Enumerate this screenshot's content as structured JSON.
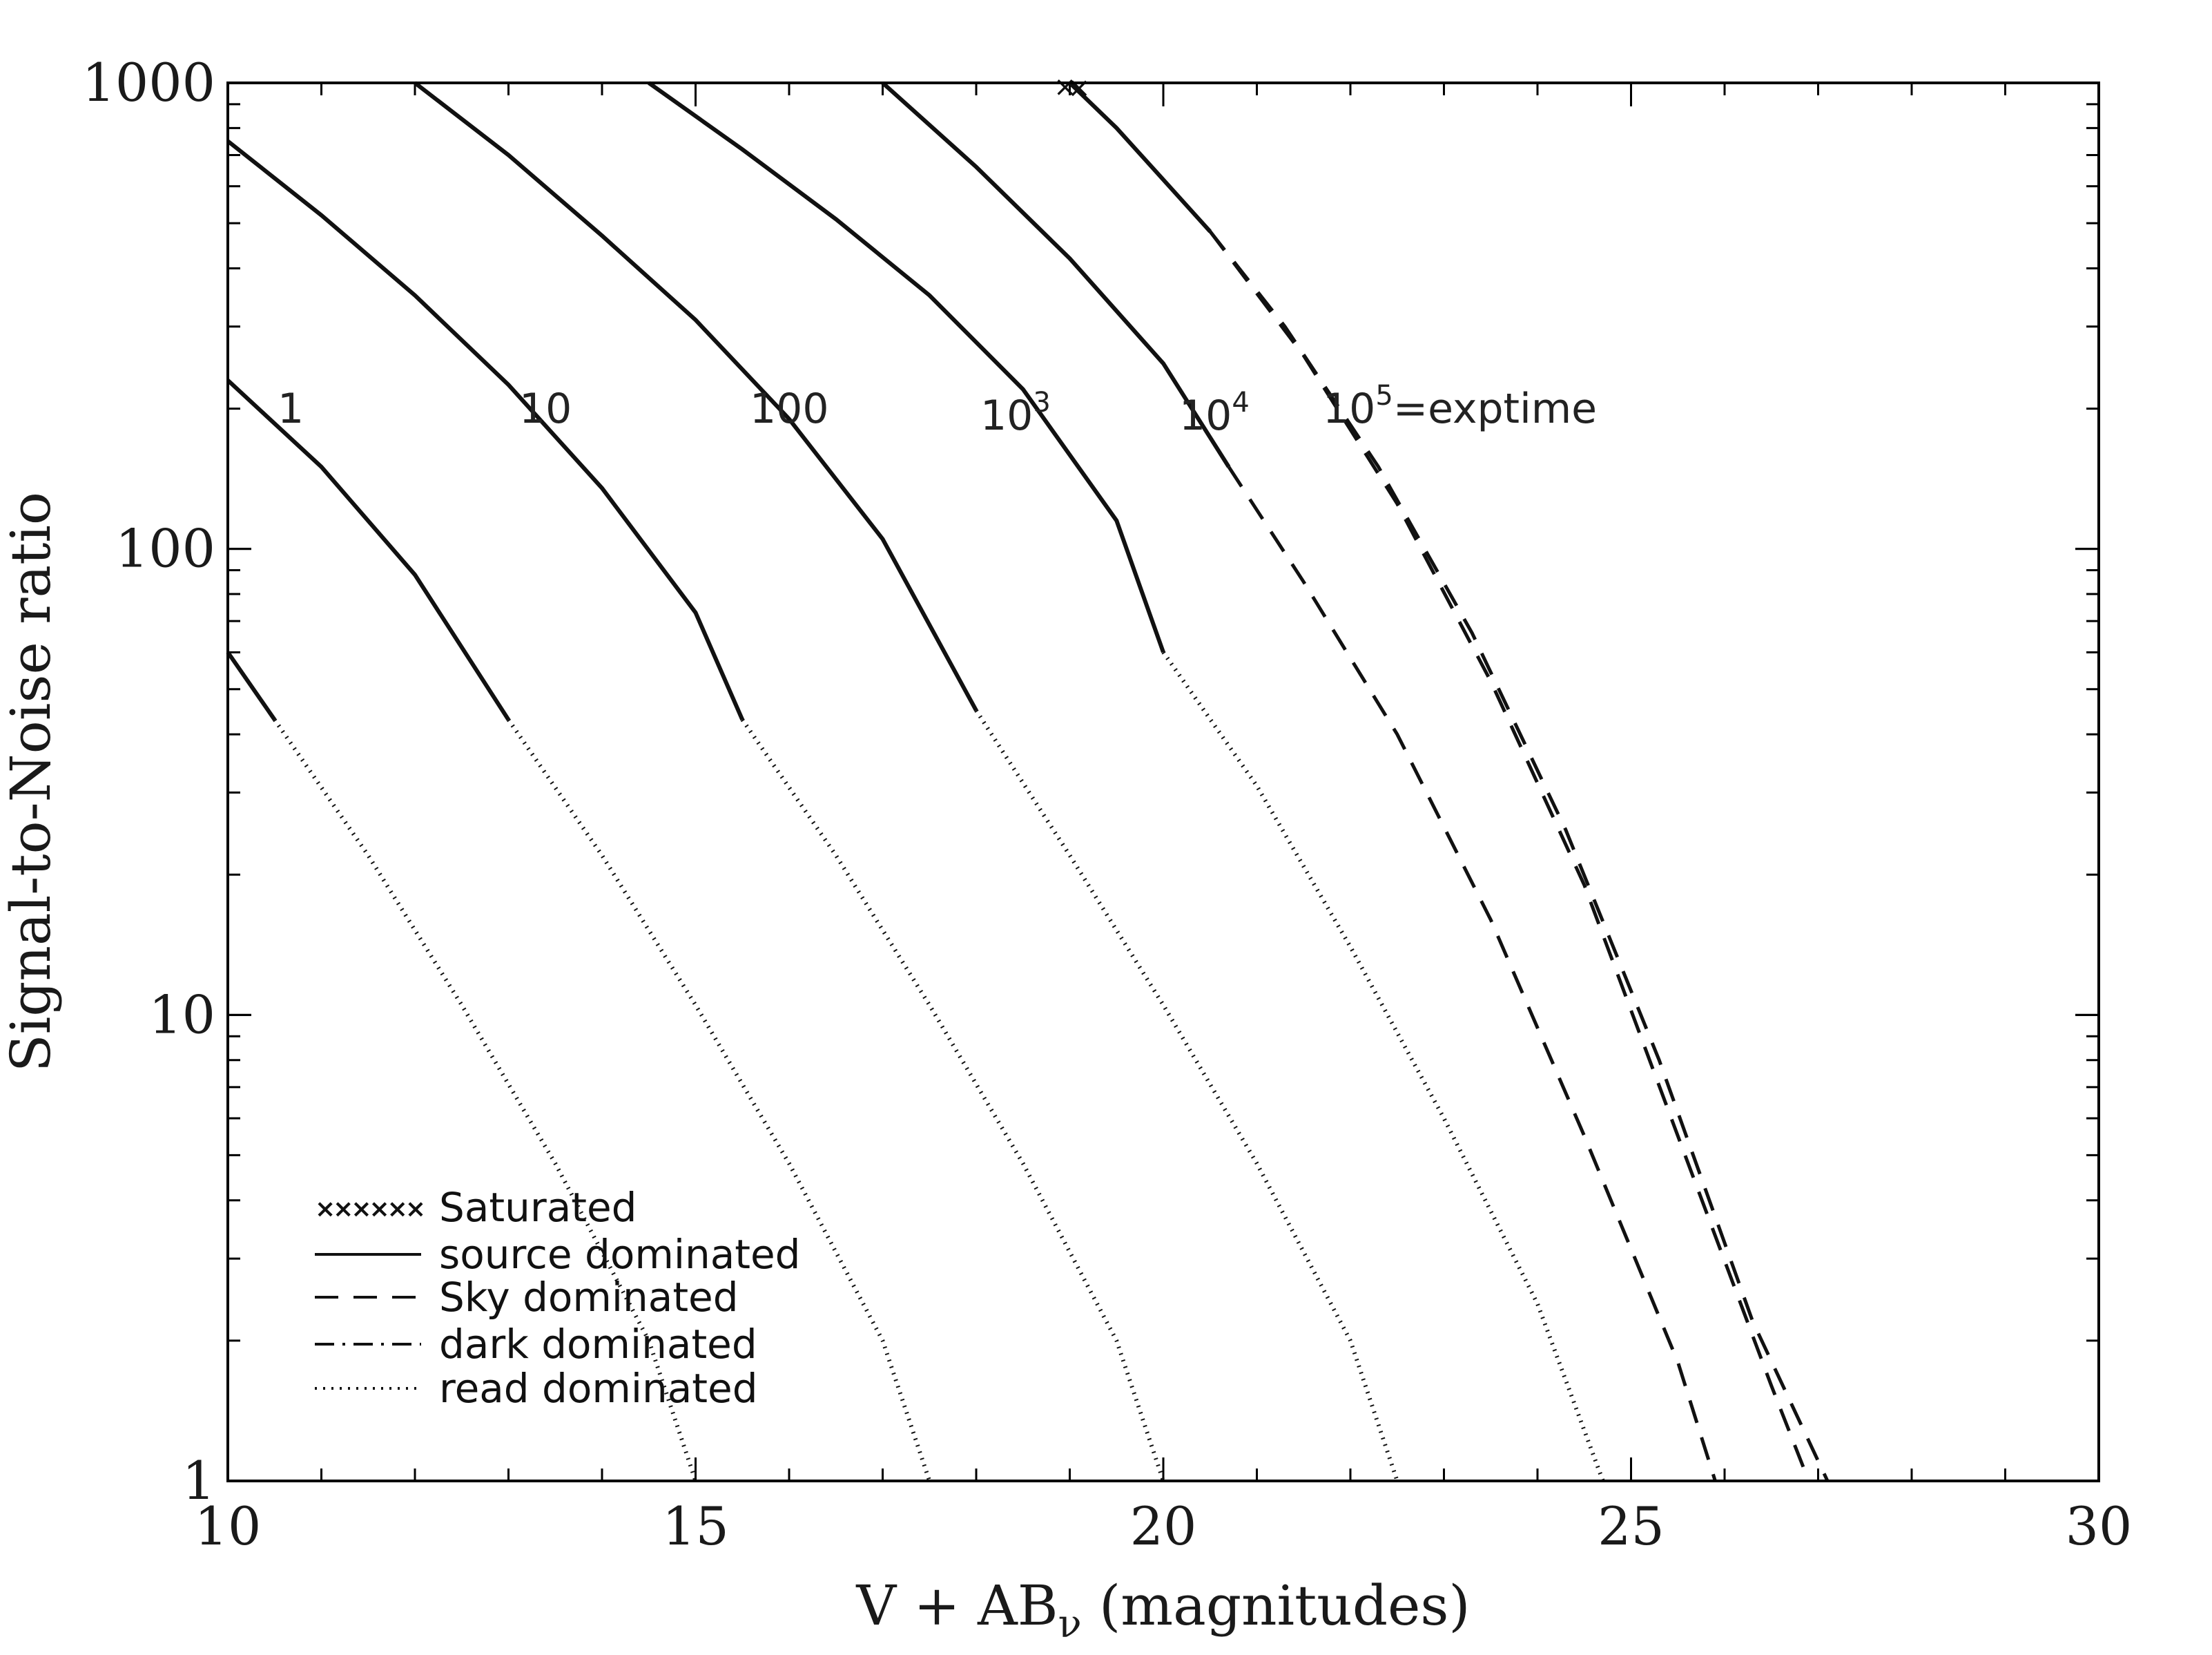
{
  "chart_data": {
    "type": "line",
    "xlabel_main": "V + AB",
    "xlabel_sub": "ν",
    "xlabel_tail": " (magnitudes)",
    "ylabel": "Signal-to-Noise ratio",
    "xlim": [
      10,
      30
    ],
    "ylim": [
      1,
      1000
    ],
    "yscale": "log",
    "x_ticks": [
      "10",
      "15",
      "20",
      "25",
      "30"
    ],
    "y_ticks": [
      "1",
      "10",
      "100",
      "1000"
    ],
    "curve_labels": [
      {
        "text": "1",
        "sup": ""
      },
      {
        "text": "10",
        "sup": ""
      },
      {
        "text": "100",
        "sup": ""
      },
      {
        "text": "10",
        "sup": "3"
      },
      {
        "text": "10",
        "sup": "4"
      },
      {
        "text": "10",
        "sup": "5",
        "suffix": "=exptime"
      }
    ],
    "legend": {
      "placement": "bottom-left",
      "items": [
        {
          "label": "Saturated",
          "style": "saturated"
        },
        {
          "label": "source dominated",
          "style": "solid"
        },
        {
          "label": "Sky dominated",
          "style": "dashed"
        },
        {
          "label": "dark dominated",
          "style": "dashdot"
        },
        {
          "label": "read dominated",
          "style": "dotted"
        }
      ]
    },
    "series": [
      {
        "segments": [
          {
            "style": "solid",
            "points": [
              [
                10.0,
                60
              ],
              [
                10.5,
                43
              ]
            ]
          },
          {
            "style": "dotted",
            "points": [
              [
                10.5,
                43
              ],
              [
                11.5,
                22
              ],
              [
                12.5,
                10.5
              ],
              [
                13.5,
                4.8
              ],
              [
                14.5,
                2.0
              ],
              [
                15.0,
                1.0
              ]
            ]
          }
        ]
      },
      {
        "segments": [
          {
            "style": "solid",
            "points": [
              [
                10.0,
                230
              ],
              [
                11.0,
                150
              ],
              [
                12.0,
                88
              ],
              [
                13.0,
                43
              ]
            ]
          },
          {
            "style": "dotted",
            "points": [
              [
                13.0,
                43
              ],
              [
                14.0,
                22
              ],
              [
                15.0,
                10.5
              ],
              [
                16.0,
                4.8
              ],
              [
                17.0,
                2.0
              ],
              [
                17.5,
                1.0
              ]
            ]
          }
        ]
      },
      {
        "segments": [
          {
            "style": "solid",
            "points": [
              [
                10.0,
                750
              ],
              [
                11.0,
                520
              ],
              [
                12.0,
                350
              ],
              [
                13.0,
                225
              ],
              [
                14.0,
                135
              ],
              [
                15.0,
                73
              ],
              [
                15.5,
                43
              ]
            ]
          },
          {
            "style": "dotted",
            "points": [
              [
                15.5,
                43
              ],
              [
                16.5,
                22
              ],
              [
                17.5,
                10.5
              ],
              [
                18.5,
                4.8
              ],
              [
                19.5,
                2.0
              ],
              [
                20.0,
                1.0
              ]
            ]
          }
        ]
      },
      {
        "segments": [
          {
            "style": "solid",
            "points": [
              [
                12.0,
                1000
              ],
              [
                13.0,
                700
              ],
              [
                14.0,
                470
              ],
              [
                15.0,
                310
              ],
              [
                16.0,
                190
              ],
              [
                17.0,
                105
              ],
              [
                18.0,
                45
              ]
            ]
          },
          {
            "style": "dotted",
            "points": [
              [
                18.0,
                45
              ],
              [
                19.0,
                22
              ],
              [
                20.0,
                10.5
              ],
              [
                21.0,
                4.8
              ],
              [
                22.0,
                2.0
              ],
              [
                22.5,
                1.0
              ]
            ]
          }
        ]
      },
      {
        "segments": [
          {
            "style": "solid",
            "points": [
              [
                14.5,
                1000
              ],
              [
                15.5,
                720
              ],
              [
                16.5,
                510
              ],
              [
                17.5,
                350
              ],
              [
                18.5,
                220
              ],
              [
                19.5,
                115
              ],
              [
                20.0,
                60
              ]
            ]
          },
          {
            "style": "dotted",
            "points": [
              [
                20.0,
                60
              ],
              [
                21.0,
                31
              ],
              [
                22.0,
                14
              ],
              [
                23.0,
                6
              ],
              [
                24.0,
                2.4
              ],
              [
                24.7,
                1.0
              ]
            ]
          }
        ]
      },
      {
        "segments": [
          {
            "style": "solid",
            "points": [
              [
                17.0,
                1000
              ],
              [
                18.0,
                660
              ],
              [
                19.0,
                420
              ],
              [
                20.0,
                250
              ],
              [
                20.7,
                150
              ]
            ]
          },
          {
            "style": "dashed",
            "points": [
              [
                20.7,
                150
              ],
              [
                21.5,
                85
              ],
              [
                22.5,
                40
              ],
              [
                23.5,
                16
              ],
              [
                24.5,
                5.5
              ],
              [
                25.5,
                1.8
              ],
              [
                25.9,
                1.0
              ]
            ]
          }
        ]
      },
      {
        "segments": [
          {
            "style": "solid",
            "points": [
              [
                19.0,
                1000
              ],
              [
                19.5,
                800
              ],
              [
                20.0,
                620
              ],
              [
                20.5,
                480
              ]
            ]
          },
          {
            "style": "dashed",
            "points": [
              [
                20.5,
                480
              ],
              [
                21.5,
                260
              ],
              [
                22.5,
                125
              ],
              [
                23.5,
                52
              ],
              [
                24.5,
                19
              ],
              [
                25.5,
                5.5
              ],
              [
                26.5,
                1.6
              ],
              [
                26.9,
                1.0
              ]
            ]
          }
        ]
      },
      {
        "segments": [
          {
            "style": "dashed",
            "points": [
              [
                20.5,
                480
              ],
              [
                21.3,
                300
              ],
              [
                22.3,
                150
              ],
              [
                23.3,
                66
              ],
              [
                24.3,
                25
              ],
              [
                25.3,
                8
              ],
              [
                26.3,
                2.2
              ],
              [
                27.1,
                1.0
              ]
            ]
          }
        ]
      }
    ],
    "saturated_points": [
      [
        18.95,
        990
      ],
      [
        19.1,
        985
      ]
    ]
  }
}
